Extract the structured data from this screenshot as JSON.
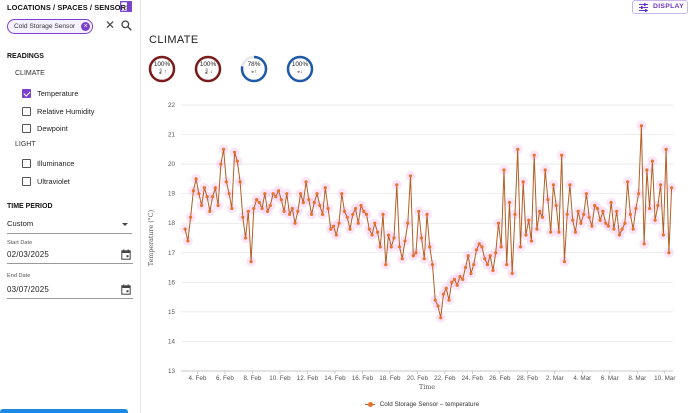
{
  "sidebar": {
    "header": "LOCATIONS / SPACES / SENSORS",
    "chip_label": "Cold Storage Sensor",
    "readings_title": "READINGS",
    "groups": [
      {
        "title": "CLIMATE",
        "items": [
          {
            "label": "Temperature",
            "checked": true
          },
          {
            "label": "Relative Humidity",
            "checked": false
          },
          {
            "label": "Dewpoint",
            "checked": false
          }
        ]
      },
      {
        "title": "LIGHT",
        "items": [
          {
            "label": "Illuminance",
            "checked": false
          },
          {
            "label": "Ultraviolet",
            "checked": false
          }
        ]
      }
    ],
    "time_period_title": "TIME PERIOD",
    "time_period_value": "Custom",
    "start_date_label": "Start Date",
    "start_date_value": "02/03/2025",
    "end_date_label": "End Date",
    "end_date_value": "03/07/2025"
  },
  "main": {
    "display_button": "DISPLAY",
    "page_title": "CLIMATE",
    "gauges": [
      {
        "value": "100%",
        "percent": 100,
        "icon": "thermometer-up-icon",
        "color": "#7a1c1c"
      },
      {
        "value": "100%",
        "percent": 100,
        "icon": "thermometer-down-icon",
        "color": "#7a1c1c"
      },
      {
        "value": "78%",
        "percent": 78,
        "icon": "humidity-up-icon",
        "color": "#1f5aa6"
      },
      {
        "value": "100%",
        "percent": 100,
        "icon": "humidity-down-icon",
        "color": "#1f5aa6"
      }
    ]
  },
  "colors": {
    "accent": "#7b3fd0",
    "series_line": "#b35f25",
    "series_marker": "#e8742b",
    "glow": "#f6c6ef"
  },
  "chart_data": {
    "type": "line",
    "xlabel": "Time",
    "ylabel": "Temperature (°C)",
    "ylim": [
      13,
      22
    ],
    "yticks": [
      13,
      14,
      15,
      16,
      17,
      18,
      19,
      20,
      21,
      22
    ],
    "xlim": [
      2.8,
      38.6
    ],
    "xticks": [
      {
        "day": 4,
        "label": "4. Feb"
      },
      {
        "day": 6,
        "label": "6. Feb"
      },
      {
        "day": 8,
        "label": "8. Feb"
      },
      {
        "day": 10,
        "label": "10. Feb"
      },
      {
        "day": 12,
        "label": "12. Feb"
      },
      {
        "day": 14,
        "label": "14. Feb"
      },
      {
        "day": 16,
        "label": "16. Feb"
      },
      {
        "day": 18,
        "label": "18. Feb"
      },
      {
        "day": 20,
        "label": "20. Feb"
      },
      {
        "day": 22,
        "label": "22. Feb"
      },
      {
        "day": 24,
        "label": "24. Feb"
      },
      {
        "day": 26,
        "label": "26. Feb"
      },
      {
        "day": 28,
        "label": "28. Feb"
      },
      {
        "day": 30,
        "label": "2. Mar"
      },
      {
        "day": 32,
        "label": "4. Mar"
      },
      {
        "day": 34,
        "label": "6. Mar"
      },
      {
        "day": 36,
        "label": "8. Mar"
      },
      {
        "day": 38,
        "label": "10. Mar"
      }
    ],
    "grid": true,
    "legend_position": "bottom",
    "series": [
      {
        "name": "Cold Storage Sensor – temperature",
        "points": [
          [
            3.1,
            17.8
          ],
          [
            3.3,
            17.4
          ],
          [
            3.5,
            18.2
          ],
          [
            3.7,
            19.1
          ],
          [
            3.9,
            19.5
          ],
          [
            4.1,
            19.0
          ],
          [
            4.3,
            18.6
          ],
          [
            4.5,
            19.2
          ],
          [
            4.7,
            18.9
          ],
          [
            4.9,
            18.4
          ],
          [
            5.1,
            18.9
          ],
          [
            5.3,
            19.2
          ],
          [
            5.5,
            18.6
          ],
          [
            5.7,
            20.0
          ],
          [
            5.9,
            20.5
          ],
          [
            6.1,
            19.4
          ],
          [
            6.3,
            19.0
          ],
          [
            6.5,
            18.5
          ],
          [
            6.7,
            20.4
          ],
          [
            6.9,
            20.1
          ],
          [
            7.1,
            19.4
          ],
          [
            7.3,
            18.2
          ],
          [
            7.5,
            17.5
          ],
          [
            7.7,
            18.4
          ],
          [
            7.9,
            16.7
          ],
          [
            8.1,
            18.5
          ],
          [
            8.3,
            18.8
          ],
          [
            8.5,
            18.7
          ],
          [
            8.7,
            18.5
          ],
          [
            8.9,
            19.0
          ],
          [
            9.1,
            18.4
          ],
          [
            9.3,
            18.6
          ],
          [
            9.5,
            19.0
          ],
          [
            9.7,
            18.9
          ],
          [
            9.9,
            19.1
          ],
          [
            10.1,
            18.8
          ],
          [
            10.3,
            18.4
          ],
          [
            10.5,
            19.0
          ],
          [
            10.7,
            18.3
          ],
          [
            10.9,
            18.5
          ],
          [
            11.1,
            18.0
          ],
          [
            11.3,
            18.4
          ],
          [
            11.5,
            19.0
          ],
          [
            11.7,
            18.7
          ],
          [
            11.9,
            19.4
          ],
          [
            12.1,
            18.8
          ],
          [
            12.3,
            18.3
          ],
          [
            12.5,
            18.7
          ],
          [
            12.7,
            19.0
          ],
          [
            12.9,
            18.6
          ],
          [
            13.1,
            18.3
          ],
          [
            13.3,
            19.2
          ],
          [
            13.5,
            18.5
          ],
          [
            13.7,
            17.8
          ],
          [
            13.9,
            17.9
          ],
          [
            14.1,
            17.6
          ],
          [
            14.3,
            18.0
          ],
          [
            14.5,
            19.0
          ],
          [
            14.7,
            18.4
          ],
          [
            14.9,
            18.2
          ],
          [
            15.1,
            17.8
          ],
          [
            15.3,
            18.3
          ],
          [
            15.5,
            18.5
          ],
          [
            15.7,
            18.0
          ],
          [
            15.9,
            18.6
          ],
          [
            16.1,
            18.4
          ],
          [
            16.3,
            18.3
          ],
          [
            16.5,
            17.8
          ],
          [
            16.7,
            17.6
          ],
          [
            16.9,
            18.0
          ],
          [
            17.1,
            17.7
          ],
          [
            17.3,
            17.2
          ],
          [
            17.5,
            18.3
          ],
          [
            17.7,
            16.6
          ],
          [
            17.9,
            17.6
          ],
          [
            18.1,
            17.2
          ],
          [
            18.3,
            17.5
          ],
          [
            18.5,
            19.3
          ],
          [
            18.7,
            17.2
          ],
          [
            18.9,
            16.8
          ],
          [
            19.1,
            17.4
          ],
          [
            19.3,
            18.0
          ],
          [
            19.5,
            19.6
          ],
          [
            19.7,
            16.9
          ],
          [
            19.9,
            17.0
          ],
          [
            20.1,
            18.4
          ],
          [
            20.3,
            17.5
          ],
          [
            20.5,
            16.8
          ],
          [
            20.7,
            18.3
          ],
          [
            20.9,
            17.2
          ],
          [
            21.1,
            16.6
          ],
          [
            21.3,
            15.4
          ],
          [
            21.5,
            15.2
          ],
          [
            21.7,
            14.8
          ],
          [
            21.9,
            15.6
          ],
          [
            22.1,
            15.8
          ],
          [
            22.3,
            15.4
          ],
          [
            22.5,
            16.0
          ],
          [
            22.7,
            16.1
          ],
          [
            22.9,
            15.9
          ],
          [
            23.1,
            16.2
          ],
          [
            23.3,
            16.1
          ],
          [
            23.5,
            16.5
          ],
          [
            23.7,
            16.9
          ],
          [
            23.9,
            16.3
          ],
          [
            24.1,
            16.6
          ],
          [
            24.3,
            17.1
          ],
          [
            24.5,
            17.3
          ],
          [
            24.7,
            17.2
          ],
          [
            24.9,
            16.8
          ],
          [
            25.1,
            16.6
          ],
          [
            25.3,
            16.9
          ],
          [
            25.5,
            16.4
          ],
          [
            25.7,
            17.0
          ],
          [
            25.9,
            18.0
          ],
          [
            26.1,
            17.2
          ],
          [
            26.3,
            19.8
          ],
          [
            26.5,
            16.6
          ],
          [
            26.7,
            18.7
          ],
          [
            26.9,
            16.3
          ],
          [
            27.1,
            18.3
          ],
          [
            27.3,
            20.5
          ],
          [
            27.5,
            17.2
          ],
          [
            27.7,
            19.4
          ],
          [
            27.9,
            17.6
          ],
          [
            28.1,
            18.1
          ],
          [
            28.3,
            17.4
          ],
          [
            28.5,
            20.3
          ],
          [
            28.7,
            17.8
          ],
          [
            28.9,
            18.4
          ],
          [
            29.1,
            18.2
          ],
          [
            29.3,
            19.8
          ],
          [
            29.5,
            18.8
          ],
          [
            29.7,
            17.7
          ],
          [
            29.9,
            19.3
          ],
          [
            30.1,
            18.6
          ],
          [
            30.3,
            17.7
          ],
          [
            30.5,
            20.3
          ],
          [
            30.7,
            16.7
          ],
          [
            30.9,
            18.3
          ],
          [
            31.1,
            19.3
          ],
          [
            31.3,
            18.1
          ],
          [
            31.5,
            17.7
          ],
          [
            31.7,
            18.4
          ],
          [
            31.9,
            18.0
          ],
          [
            32.1,
            18.3
          ],
          [
            32.3,
            19.0
          ],
          [
            32.5,
            18.2
          ],
          [
            32.7,
            17.9
          ],
          [
            32.9,
            18.6
          ],
          [
            33.1,
            18.5
          ],
          [
            33.3,
            18.1
          ],
          [
            33.5,
            18.4
          ],
          [
            33.7,
            18.0
          ],
          [
            33.9,
            17.9
          ],
          [
            34.1,
            18.7
          ],
          [
            34.3,
            17.8
          ],
          [
            34.5,
            18.4
          ],
          [
            34.7,
            17.6
          ],
          [
            34.9,
            17.8
          ],
          [
            35.1,
            18.0
          ],
          [
            35.3,
            19.4
          ],
          [
            35.5,
            18.3
          ],
          [
            35.7,
            17.8
          ],
          [
            35.9,
            18.5
          ],
          [
            36.1,
            19.0
          ],
          [
            36.3,
            21.3
          ],
          [
            36.5,
            17.3
          ],
          [
            36.7,
            19.8
          ],
          [
            36.9,
            18.5
          ],
          [
            37.1,
            20.1
          ],
          [
            37.3,
            18.1
          ],
          [
            37.5,
            18.6
          ],
          [
            37.7,
            19.3
          ],
          [
            37.9,
            17.6
          ],
          [
            38.1,
            20.5
          ],
          [
            38.3,
            17.0
          ],
          [
            38.5,
            19.2
          ]
        ]
      }
    ]
  }
}
